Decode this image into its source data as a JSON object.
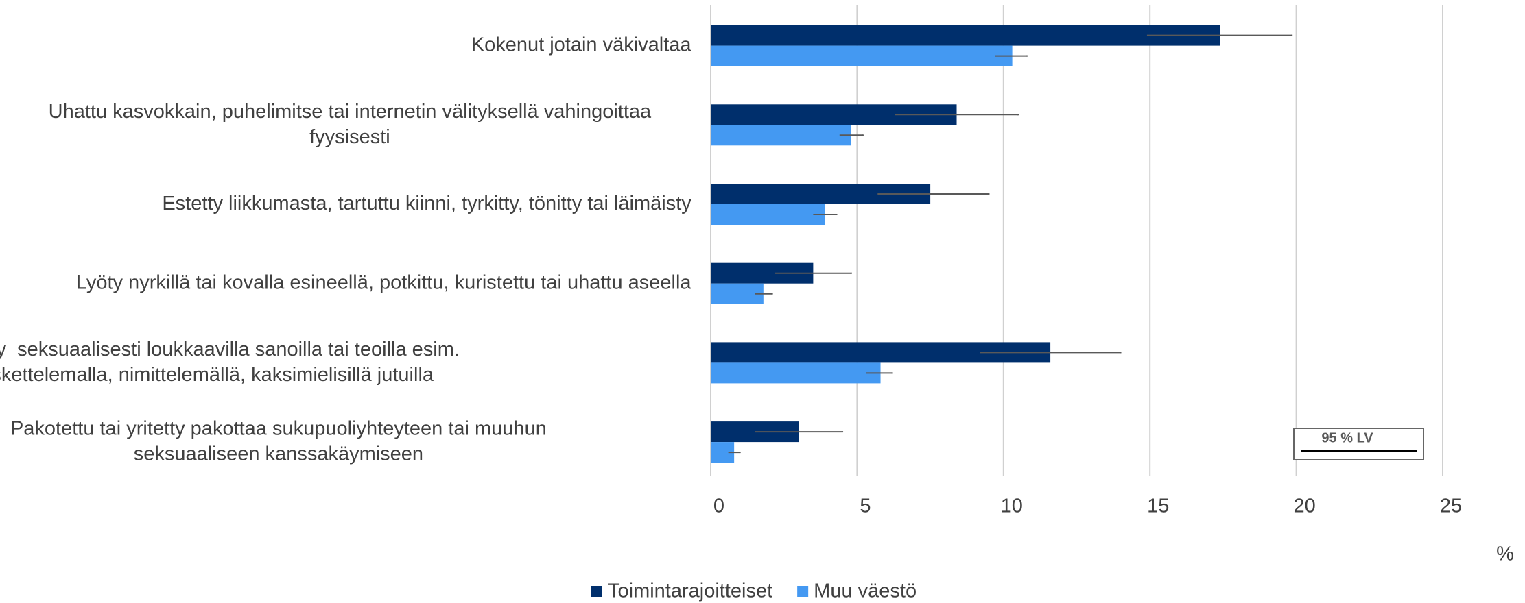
{
  "chart_data": {
    "type": "bar",
    "orientation": "horizontal",
    "categories": [
      "Kokenut jotain väkivaltaa",
      "Uhattu kasvokkain, puhelimitse tai internetin välityksellä vahingoittaa\nfyysisesti",
      "Estetty liikkumasta, tartuttu kiinni, tyrkitty, tönitty tai läimäisty",
      "Lyöty nyrkillä tai kovalla esineellä, potkittu, kuristettu tai uhattu aseella",
      "Häiritty  seksuaalisesti loukkaavilla sanoilla tai teoilla esim.\nkoskettelemalla, nimittelemällä, kaksimielisillä jutuilla",
      "Pakotettu tai yritetty pakottaa sukupuoliyhteyteen tai muuhun\nseksuaaliseen kanssakäymiseen"
    ],
    "series": [
      {
        "name": "Toimintarajoitteiset",
        "color": "#002f6c",
        "values": [
          17.4,
          8.4,
          7.5,
          3.5,
          11.6,
          3.0
        ],
        "ci_low": [
          14.9,
          6.3,
          5.7,
          2.2,
          9.2,
          1.5
        ],
        "ci_high": [
          19.85,
          10.5,
          9.5,
          4.8,
          14.0,
          4.5
        ]
      },
      {
        "name": "Muu väestö",
        "color": "#4499f2",
        "values": [
          10.3,
          4.8,
          3.9,
          1.8,
          5.8,
          0.8
        ],
        "ci_low": [
          9.7,
          4.4,
          3.5,
          1.5,
          5.3,
          0.6
        ],
        "ci_high": [
          10.8,
          5.2,
          4.3,
          2.1,
          6.2,
          1.0
        ]
      }
    ],
    "xlim": [
      0,
      25
    ],
    "xticks": [
      0,
      5,
      10,
      15,
      20,
      25
    ],
    "grid": true,
    "x_label": "%",
    "annotation": "95 % LV",
    "legend": "bottom"
  }
}
